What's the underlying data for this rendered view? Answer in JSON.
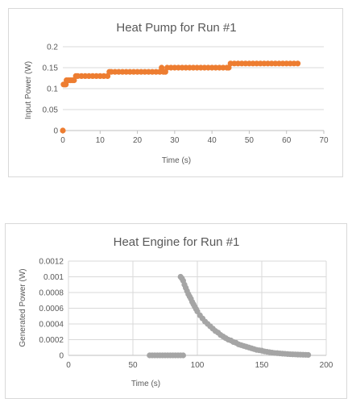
{
  "chart_data": [
    {
      "type": "scatter",
      "title": "Heat Pump for Run #1",
      "xlabel": "Time (s)",
      "ylabel": "Input Power (W)",
      "xlim": [
        0,
        70
      ],
      "ylim": [
        0,
        0.2
      ],
      "xticks": [
        "0",
        "10",
        "20",
        "30",
        "40",
        "50",
        "60",
        "70"
      ],
      "yticks": [
        "0",
        "0.05",
        "0.1",
        "0.15",
        "0.2"
      ],
      "grid": "horizontal",
      "color": "#ED7D31",
      "series": [
        {
          "points": [
            [
              0,
              0
            ],
            [
              0.2,
              0.11
            ],
            [
              0.5,
              0.11
            ],
            [
              0.8,
              0.11
            ],
            [
              1.0,
              0.12
            ],
            [
              1.5,
              0.12
            ],
            [
              2.0,
              0.12
            ],
            [
              2.5,
              0.12
            ],
            [
              3.0,
              0.12
            ],
            [
              3.5,
              0.13
            ],
            [
              4,
              0.13
            ],
            [
              5,
              0.13
            ],
            [
              6,
              0.13
            ],
            [
              7,
              0.13
            ],
            [
              8,
              0.13
            ],
            [
              9,
              0.13
            ],
            [
              10,
              0.13
            ],
            [
              11,
              0.13
            ],
            [
              12,
              0.13
            ],
            [
              12.5,
              0.14
            ],
            [
              13,
              0.14
            ],
            [
              14,
              0.14
            ],
            [
              15,
              0.14
            ],
            [
              16,
              0.14
            ],
            [
              17,
              0.14
            ],
            [
              18,
              0.14
            ],
            [
              19,
              0.14
            ],
            [
              20,
              0.14
            ],
            [
              21,
              0.14
            ],
            [
              22,
              0.14
            ],
            [
              23,
              0.14
            ],
            [
              24,
              0.14
            ],
            [
              25,
              0.14
            ],
            [
              26,
              0.14
            ],
            [
              27,
              0.14
            ],
            [
              27.5,
              0.14
            ],
            [
              26.5,
              0.15
            ],
            [
              28,
              0.15
            ],
            [
              29,
              0.15
            ],
            [
              30,
              0.15
            ],
            [
              31,
              0.15
            ],
            [
              32,
              0.15
            ],
            [
              33,
              0.15
            ],
            [
              34,
              0.15
            ],
            [
              35,
              0.15
            ],
            [
              36,
              0.15
            ],
            [
              37,
              0.15
            ],
            [
              38,
              0.15
            ],
            [
              39,
              0.15
            ],
            [
              40,
              0.15
            ],
            [
              41,
              0.15
            ],
            [
              42,
              0.15
            ],
            [
              43,
              0.15
            ],
            [
              44,
              0.15
            ],
            [
              44.5,
              0.15
            ],
            [
              45,
              0.16
            ],
            [
              46,
              0.16
            ],
            [
              47,
              0.16
            ],
            [
              48,
              0.16
            ],
            [
              49,
              0.16
            ],
            [
              50,
              0.16
            ],
            [
              51,
              0.16
            ],
            [
              52,
              0.16
            ],
            [
              53,
              0.16
            ],
            [
              54,
              0.16
            ],
            [
              55,
              0.16
            ],
            [
              56,
              0.16
            ],
            [
              57,
              0.16
            ],
            [
              58,
              0.16
            ],
            [
              59,
              0.16
            ],
            [
              60,
              0.16
            ],
            [
              61,
              0.16
            ],
            [
              62,
              0.16
            ],
            [
              63,
              0.16
            ]
          ]
        }
      ]
    },
    {
      "type": "scatter",
      "title": "Heat Engine for Run #1",
      "xlabel": "Time (s)",
      "ylabel": "Generated Power (W)",
      "xlim": [
        0,
        200
      ],
      "ylim": [
        0,
        0.0012
      ],
      "xticks": [
        "0",
        "50",
        "100",
        "150",
        "200"
      ],
      "yticks": [
        "0",
        "0.0002",
        "0.0004",
        "0.0006",
        "0.0008",
        "0.001",
        "0.0012"
      ],
      "grid": "both",
      "color": "#A5A5A5",
      "series": [
        {
          "points": [
            [
              63,
              0
            ],
            [
              65,
              0
            ],
            [
              67,
              0
            ],
            [
              69,
              0
            ],
            [
              71,
              0
            ],
            [
              73,
              0
            ],
            [
              75,
              0
            ],
            [
              77,
              0
            ],
            [
              79,
              0
            ],
            [
              81,
              0
            ],
            [
              83,
              0
            ],
            [
              85,
              0
            ],
            [
              87,
              0
            ],
            [
              89,
              0
            ],
            [
              87,
              0.001
            ],
            [
              88,
              0.00098
            ],
            [
              89,
              0.00095
            ],
            [
              90,
              0.0009
            ],
            [
              91,
              0.00086
            ],
            [
              92,
              0.00082
            ],
            [
              93,
              0.00078
            ],
            [
              94,
              0.00075
            ],
            [
              95,
              0.00072
            ],
            [
              96,
              0.00068
            ],
            [
              97,
              0.00065
            ],
            [
              98,
              0.00062
            ],
            [
              99,
              0.00059
            ],
            [
              100,
              0.00056
            ],
            [
              102,
              0.00051
            ],
            [
              104,
              0.00047
            ],
            [
              106,
              0.00043
            ],
            [
              108,
              0.0004
            ],
            [
              110,
              0.00037
            ],
            [
              112,
              0.00034
            ],
            [
              114,
              0.00031
            ],
            [
              116,
              0.00029
            ],
            [
              118,
              0.00026
            ],
            [
              120,
              0.00024
            ],
            [
              122,
              0.00022
            ],
            [
              124,
              0.0002
            ],
            [
              126,
              0.00019
            ],
            [
              128,
              0.00017
            ],
            [
              130,
              0.00016
            ],
            [
              132,
              0.00014
            ],
            [
              134,
              0.00013
            ],
            [
              136,
              0.00012
            ],
            [
              138,
              0.00011
            ],
            [
              140,
              0.0001
            ],
            [
              142,
              9e-05
            ],
            [
              144,
              8e-05
            ],
            [
              146,
              7e-05
            ],
            [
              148,
              6.5e-05
            ],
            [
              150,
              6e-05
            ],
            [
              152,
              5e-05
            ],
            [
              154,
              4.5e-05
            ],
            [
              156,
              4e-05
            ],
            [
              158,
              3.5e-05
            ],
            [
              160,
              3e-05
            ],
            [
              162,
              2.8e-05
            ],
            [
              164,
              2.5e-05
            ],
            [
              166,
              2.2e-05
            ],
            [
              168,
              2e-05
            ],
            [
              170,
              1.7e-05
            ],
            [
              172,
              1.5e-05
            ],
            [
              174,
              1.3e-05
            ],
            [
              176,
              1.2e-05
            ],
            [
              178,
              1e-05
            ],
            [
              180,
              9e-06
            ],
            [
              182,
              8e-06
            ],
            [
              184,
              7e-06
            ],
            [
              186,
              6e-06
            ]
          ]
        }
      ]
    }
  ]
}
